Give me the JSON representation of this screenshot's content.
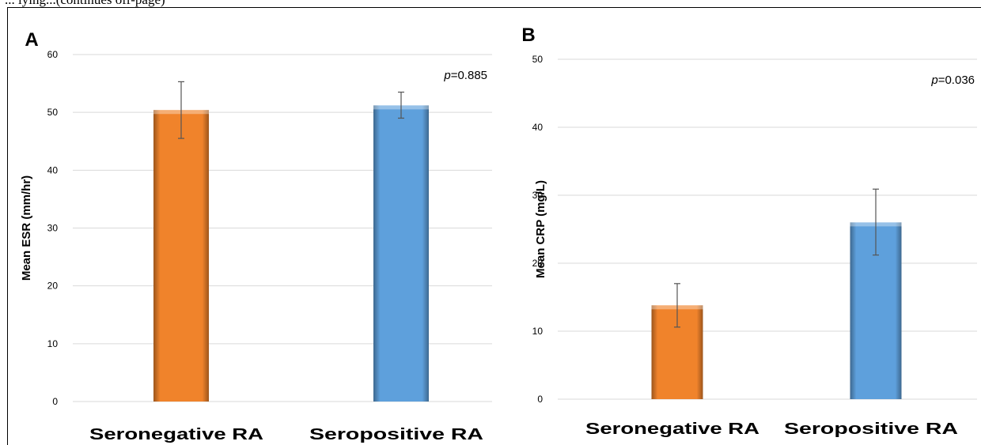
{
  "header_fragment": "... lying...(continues off-page)",
  "panels": [
    {
      "letter": "A",
      "p_label": "p",
      "p_value": "=0.885",
      "chart_data": {
        "type": "bar",
        "categories": [
          "Seronegative  RA",
          "Seropositive RA"
        ],
        "values": [
          50.4,
          51.2
        ],
        "errors": [
          [
            45.5,
            55.3
          ],
          [
            49.0,
            53.5
          ]
        ],
        "colors": [
          "#f0832b",
          "#5ea0dc"
        ],
        "ylabel": "Mean ESR (mm/hr)",
        "ylim": [
          0,
          60
        ],
        "yticks": [
          0,
          10,
          20,
          30,
          40,
          50,
          60
        ],
        "grid": true
      }
    },
    {
      "letter": "B",
      "p_label": "p",
      "p_value": "=0.036",
      "chart_data": {
        "type": "bar",
        "categories": [
          "Seronegative  RA",
          "Seropositive RA"
        ],
        "values": [
          13.8,
          26.0
        ],
        "errors": [
          [
            10.6,
            17.0
          ],
          [
            21.2,
            30.9
          ]
        ],
        "colors": [
          "#f0832b",
          "#5ea0dc"
        ],
        "ylabel": "Mean CRP (mg/L)",
        "ylim": [
          0,
          50
        ],
        "yticks": [
          0,
          10,
          20,
          30,
          40,
          50
        ],
        "grid": true
      }
    }
  ]
}
